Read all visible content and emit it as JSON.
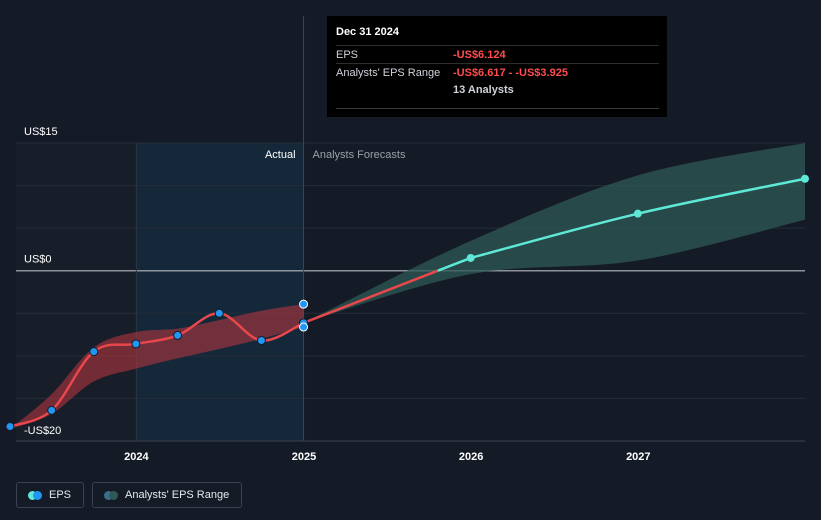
{
  "chart_data": {
    "type": "line",
    "y_axis": {
      "ticks": [
        {
          "label": "US$15",
          "value": 15
        },
        {
          "label": "US$0",
          "value": 0
        },
        {
          "label": "-US$20",
          "value": -20
        }
      ],
      "ylim": [
        -20,
        15
      ]
    },
    "x_axis": {
      "ticks": [
        "2024",
        "2025",
        "2026",
        "2027"
      ],
      "xlim": [
        "2023-03-31",
        "2027-12-31"
      ]
    },
    "region_labels": {
      "actual": "Actual",
      "forecast": "Analysts Forecasts"
    },
    "series": [
      {
        "name": "EPS",
        "color": "#e8474c",
        "points": [
          {
            "date": "2023-03-31",
            "value": -18.3
          },
          {
            "date": "2023-06-30",
            "value": -16.4
          },
          {
            "date": "2023-09-30",
            "value": -9.5
          },
          {
            "date": "2023-12-31",
            "value": -8.6
          },
          {
            "date": "2024-03-31",
            "value": -7.6
          },
          {
            "date": "2024-06-30",
            "value": -5.0
          },
          {
            "date": "2024-09-30",
            "value": -8.2
          },
          {
            "date": "2024-12-31",
            "value": -6.124
          }
        ],
        "extra_markers": [
          {
            "date": "2024-12-31",
            "value": -3.925
          },
          {
            "date": "2024-12-31",
            "value": -6.617
          }
        ]
      },
      {
        "name": "EPS Forecast",
        "color": "#5ee8d6",
        "points": [
          {
            "date": "2024-12-31",
            "value": -6.124
          },
          {
            "date": "2025-12-31",
            "value": 1.5
          },
          {
            "date": "2026-12-31",
            "value": 6.7
          },
          {
            "date": "2027-12-31",
            "value": 10.8
          }
        ]
      }
    ],
    "past_range": {
      "name": "Analysts' EPS Range (past)",
      "color": "#c0373f",
      "upper": [
        {
          "date": "2023-03-31",
          "value": -18.6
        },
        {
          "date": "2023-06-30",
          "value": -14.5
        },
        {
          "date": "2023-09-30",
          "value": -9.0
        },
        {
          "date": "2023-12-31",
          "value": -7.2
        },
        {
          "date": "2024-03-31",
          "value": -6.8
        },
        {
          "date": "2024-06-30",
          "value": -5.8
        },
        {
          "date": "2024-09-30",
          "value": -4.7
        },
        {
          "date": "2024-12-31",
          "value": -3.925
        }
      ],
      "lower": [
        {
          "date": "2023-03-31",
          "value": -18.6
        },
        {
          "date": "2023-06-30",
          "value": -16.8
        },
        {
          "date": "2023-09-30",
          "value": -13.0
        },
        {
          "date": "2023-12-31",
          "value": -11.5
        },
        {
          "date": "2024-03-31",
          "value": -10.3
        },
        {
          "date": "2024-06-30",
          "value": -9.2
        },
        {
          "date": "2024-09-30",
          "value": -8.0
        },
        {
          "date": "2024-12-31",
          "value": -6.617
        }
      ]
    },
    "forecast_range": {
      "name": "Analysts' EPS Range",
      "color": "#2d5a56",
      "upper": [
        {
          "date": "2024-12-31",
          "value": -6.124
        },
        {
          "date": "2025-12-31",
          "value": 3.5
        },
        {
          "date": "2026-12-31",
          "value": 11.2
        },
        {
          "date": "2027-12-31",
          "value": 15.0
        }
      ],
      "lower": [
        {
          "date": "2024-12-31",
          "value": -6.124
        },
        {
          "date": "2025-12-31",
          "value": -0.4
        },
        {
          "date": "2026-12-31",
          "value": 1.2
        },
        {
          "date": "2027-12-31",
          "value": 6.0
        }
      ]
    },
    "legend_placement": "bottom-left",
    "grid": true
  },
  "tooltip": {
    "date": "Dec 31 2024",
    "eps_label": "EPS",
    "eps_value": "-US$6.124",
    "range_label": "Analysts' EPS Range",
    "range_value": "-US$6.617 - -US$3.925",
    "analysts": "13 Analysts"
  },
  "legend": {
    "eps": {
      "label": "EPS",
      "colors": [
        "#2196f3",
        "#5ee8d6"
      ]
    },
    "range": {
      "label": "Analysts' EPS Range",
      "colors": [
        "#3a6e8a",
        "#2d5a56"
      ]
    }
  }
}
